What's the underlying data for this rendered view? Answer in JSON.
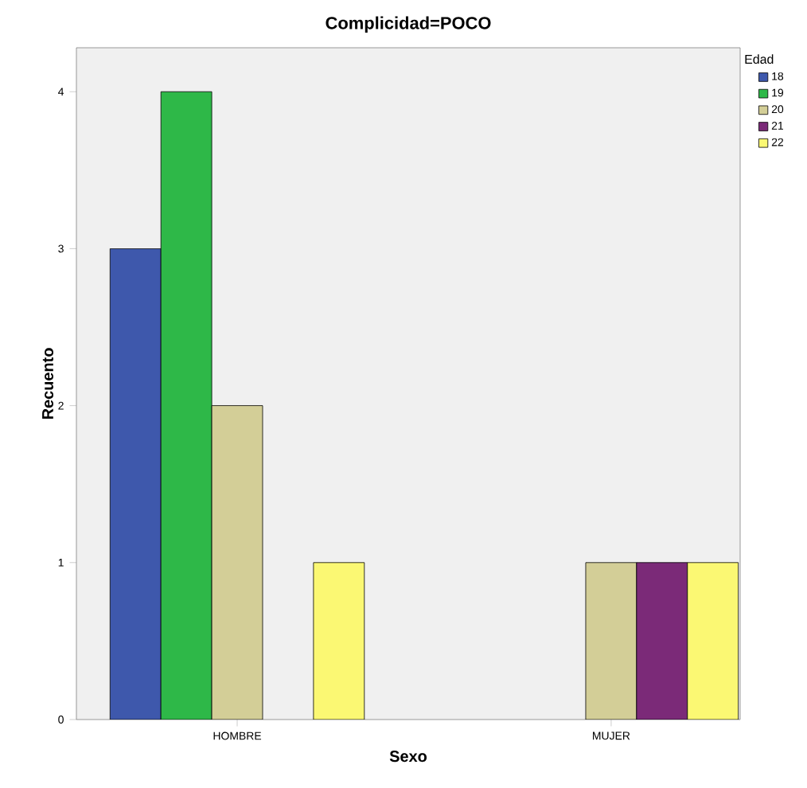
{
  "chart_data": {
    "type": "bar",
    "title": "Complicidad=POCO",
    "xlabel": "Sexo",
    "ylabel": "Recuento",
    "legend_title": "Edad",
    "legend": "right",
    "categories": [
      "HOMBRE",
      "MUJER"
    ],
    "ylim": [
      0,
      4.28
    ],
    "yticks": [
      0,
      1,
      2,
      3,
      4
    ],
    "series": [
      {
        "name": "18",
        "color": "#3e58ac",
        "values": [
          3,
          null
        ]
      },
      {
        "name": "19",
        "color": "#2eb848",
        "values": [
          4,
          null
        ]
      },
      {
        "name": "20",
        "color": "#d3ce97",
        "values": [
          2,
          1
        ]
      },
      {
        "name": "21",
        "color": "#7b2a78",
        "values": [
          null,
          1
        ]
      },
      {
        "name": "22",
        "color": "#fbf873",
        "values": [
          1,
          1
        ]
      }
    ]
  }
}
